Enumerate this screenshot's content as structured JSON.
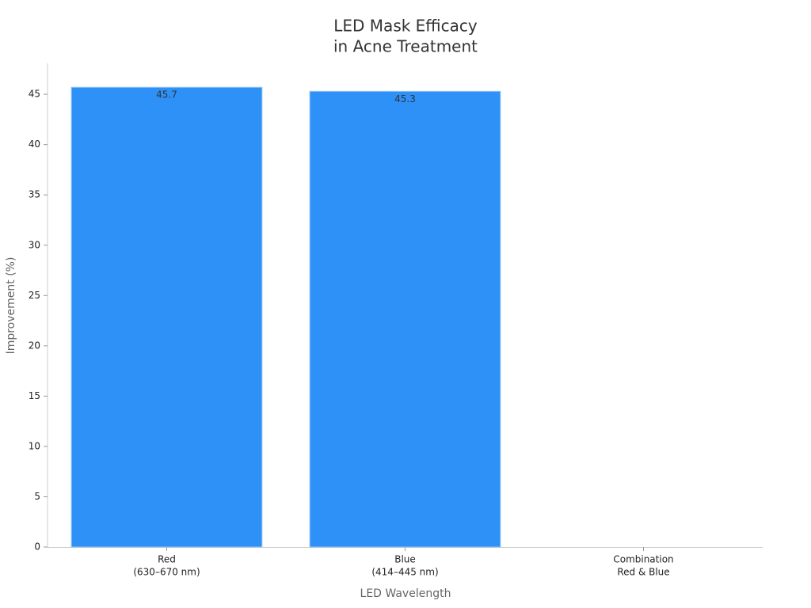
{
  "chart_data": {
    "type": "bar",
    "title": [
      "LED Mask Efficacy",
      "in Acne Treatment"
    ],
    "x_label": "LED Wavelength",
    "y_label": "Improvement (%)",
    "categories": [
      [
        "Red",
        "(630–670 nm)"
      ],
      [
        "Blue",
        "(414–445 nm)"
      ],
      [
        "Combination",
        "Red & Blue"
      ]
    ],
    "values": [
      45.7,
      45.3,
      null
    ],
    "color": "#2E91F8",
    "ylim": [
      0,
      48
    ],
    "yticks": [
      0,
      5,
      10,
      15,
      20,
      25,
      30,
      35,
      40,
      45
    ],
    "grid": false
  }
}
